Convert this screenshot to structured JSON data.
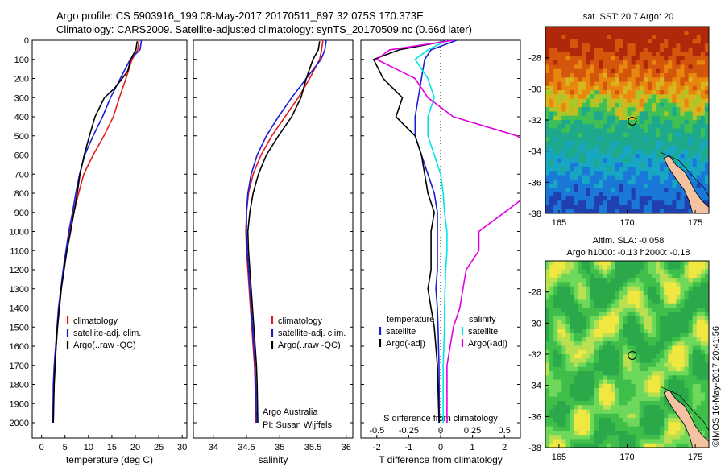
{
  "header": {
    "line1": "Argo profile: CS 5903916_199 08-May-2017 20170511_897 32.075S 170.373E",
    "line2": "Climatology: CARS2009. Satellite-adjusted climatology: synTS_20170509.nc (0.66d later)"
  },
  "side_stamp": "©IMOS 16-May-2017 20:41:56",
  "colors": {
    "climatology": "#e41a1c",
    "satellite": "#1c1cd8",
    "argo": "#000000",
    "sat_sal": "#00e5e5",
    "argo_sal": "#e000e0"
  },
  "chart_data": [
    {
      "type": "line",
      "title": "",
      "xlabel": "temperature (deg C)",
      "ylabel": "",
      "xlim": [
        -2,
        31
      ],
      "ylim": [
        2080,
        0
      ],
      "xticks": [
        "0",
        "5",
        "10",
        "15",
        "20",
        "25",
        "30"
      ],
      "yticks": [
        "0",
        "100",
        "200",
        "300",
        "400",
        "500",
        "600",
        "700",
        "800",
        "900",
        "1000",
        "1100",
        "1200",
        "1300",
        "1400",
        "1500",
        "1600",
        "1700",
        "1800",
        "1900",
        "2000"
      ],
      "legend": {
        "position": "lower-center",
        "entries": [
          "climatology",
          "satellite-adj. clim.",
          "Argo(..raw -QC)"
        ]
      },
      "series": [
        {
          "name": "climatology",
          "x": [
            20.8,
            20.5,
            19.3,
            18.0,
            16.6,
            15.3,
            13.3,
            11.0,
            9.0,
            7.9,
            6.9,
            6.0,
            5.3,
            4.7,
            4.2,
            3.8,
            3.4,
            3.1,
            2.8,
            2.6,
            2.5
          ],
          "y": [
            0,
            50,
            100,
            200,
            300,
            400,
            500,
            600,
            700,
            800,
            900,
            1000,
            1100,
            1200,
            1300,
            1400,
            1500,
            1600,
            1700,
            1800,
            2000
          ]
        },
        {
          "name": "satellite-adj. clim.",
          "x": [
            21.3,
            21.0,
            18.9,
            16.8,
            14.7,
            13.0,
            11.0,
            9.2,
            8.1,
            7.3,
            6.6,
            5.8,
            5.2,
            4.6,
            4.1,
            3.6,
            3.3,
            3.0,
            2.7,
            2.5,
            2.4
          ],
          "y": [
            0,
            50,
            100,
            200,
            300,
            400,
            500,
            600,
            700,
            800,
            900,
            1000,
            1100,
            1200,
            1300,
            1400,
            1500,
            1600,
            1700,
            1800,
            2000
          ]
        },
        {
          "name": "Argo(..raw -QC)",
          "x": [
            20.4,
            20.1,
            19.0,
            18.4,
            17.2,
            15.6,
            13.4,
            11.4,
            10.2,
            9.1,
            8.2,
            7.6,
            6.9,
            6.2,
            5.4,
            4.8,
            4.2,
            3.8,
            3.4,
            3.1,
            2.9,
            2.7,
            2.5
          ],
          "y": [
            5,
            50,
            100,
            160,
            200,
            250,
            300,
            400,
            500,
            600,
            700,
            800,
            900,
            1000,
            1100,
            1200,
            1300,
            1400,
            1500,
            1600,
            1700,
            1800,
            2000
          ]
        }
      ]
    },
    {
      "type": "line",
      "title": "",
      "xlabel": "salinity",
      "ylabel": "",
      "xlim": [
        33.7,
        36.1
      ],
      "ylim": [
        2080,
        0
      ],
      "xticks": [
        "34",
        "34.5",
        "35",
        "35.5",
        "36"
      ],
      "legend": {
        "position": "lower-center",
        "entries": [
          "climatology",
          "satellite-adj. clim.",
          "Argo(..raw -QC)"
        ]
      },
      "annotation": [
        "Argo Australia",
        "PI: Susan Wijffels"
      ],
      "series": [
        {
          "name": "climatology",
          "x": [
            35.65,
            35.63,
            35.6,
            35.45,
            35.28,
            35.08,
            34.88,
            34.72,
            34.6,
            34.53,
            34.5,
            34.49,
            34.5,
            34.52,
            34.54,
            34.56,
            34.58,
            34.6,
            34.62,
            34.63,
            34.64
          ],
          "y": [
            0,
            50,
            100,
            200,
            300,
            400,
            500,
            600,
            700,
            800,
            900,
            1000,
            1100,
            1200,
            1300,
            1400,
            1500,
            1600,
            1700,
            1800,
            2000
          ]
        },
        {
          "name": "satellite-adj. clim.",
          "x": [
            35.7,
            35.68,
            35.62,
            35.4,
            35.18,
            34.98,
            34.8,
            34.66,
            34.57,
            34.52,
            34.5,
            34.5,
            34.51,
            34.53,
            34.55,
            34.57,
            34.59,
            34.61,
            34.63,
            34.64,
            34.65
          ],
          "y": [
            0,
            50,
            100,
            200,
            300,
            400,
            500,
            600,
            700,
            800,
            900,
            1000,
            1100,
            1200,
            1300,
            1400,
            1500,
            1600,
            1700,
            1800,
            2000
          ]
        },
        {
          "name": "Argo(..raw -QC)",
          "x": [
            35.6,
            35.58,
            35.5,
            35.4,
            35.32,
            35.18,
            34.98,
            34.8,
            34.68,
            34.6,
            34.55,
            34.52,
            34.53,
            34.55,
            34.57,
            34.59,
            34.61,
            34.63,
            34.65,
            34.66,
            34.67
          ],
          "y": [
            5,
            50,
            100,
            200,
            300,
            400,
            500,
            600,
            700,
            800,
            900,
            1000,
            1100,
            1200,
            1300,
            1400,
            1500,
            1600,
            1700,
            1800,
            2000
          ]
        }
      ]
    },
    {
      "type": "line",
      "title": "",
      "xlabel": "T difference from climatology",
      "xlabel2": "S difference from climatology",
      "ylabel": "",
      "xlim": [
        -2.5,
        2.5
      ],
      "ylim": [
        2080,
        0
      ],
      "xticks_T": [
        "-2",
        "-1",
        "0",
        "1",
        "2"
      ],
      "xticks_S": [
        "-0.5",
        "-0.25",
        "0",
        "0.25",
        "0.5"
      ],
      "legend": {
        "position": "lower",
        "headers": [
          "temperature",
          "salinity"
        ],
        "entries": [
          "satellite",
          "Argo(-adj)",
          "satellite",
          "Argo(-adj)"
        ]
      },
      "series": [
        {
          "name": "satellite",
          "group": "temperature",
          "x": [
            0.5,
            -0.3,
            -0.5,
            -0.6,
            -0.7,
            -0.8,
            -0.8,
            -0.6,
            -0.4,
            -0.2,
            -0.1,
            -0.1,
            -0.1,
            -0.1,
            -0.15,
            -0.1,
            -0.08,
            -0.05,
            -0.04
          ],
          "y": [
            0,
            50,
            100,
            200,
            300,
            400,
            500,
            600,
            700,
            800,
            900,
            1000,
            1100,
            1200,
            1300,
            1400,
            1500,
            1700,
            2000
          ]
        },
        {
          "name": "Argo(-adj)",
          "group": "temperature",
          "x": [
            0.3,
            -1.3,
            -2.1,
            -1.8,
            -1.2,
            -1.4,
            -0.8,
            -0.6,
            -0.5,
            -0.4,
            -0.2,
            -0.3,
            -0.3,
            -0.3,
            -0.4,
            -0.3,
            -0.2,
            -0.1,
            -0.05
          ],
          "y": [
            0,
            50,
            100,
            200,
            300,
            400,
            500,
            600,
            700,
            800,
            900,
            1000,
            1100,
            1200,
            1300,
            1400,
            1500,
            1700,
            2000
          ]
        },
        {
          "name": "satellite",
          "group": "salinity",
          "x": [
            0.05,
            -0.1,
            -0.2,
            -0.1,
            -0.05,
            -0.1,
            -0.1,
            -0.05,
            0.0,
            0.02,
            0.03,
            0.05,
            0.05,
            0.04,
            0.03,
            0.03,
            0.02,
            0.02
          ],
          "y": [
            0,
            50,
            100,
            200,
            300,
            400,
            500,
            600,
            700,
            800,
            900,
            1000,
            1100,
            1200,
            1400,
            1500,
            1700,
            2000
          ]
        },
        {
          "name": "Argo(-adj)",
          "group": "salinity",
          "x": [
            0.1,
            -0.4,
            -0.5,
            -0.2,
            -0.1,
            0.1,
            0.6,
            0.8,
            0.9,
            0.7,
            0.5,
            0.3,
            0.3,
            0.2,
            0.15,
            0.1,
            0.05,
            0.05
          ],
          "y": [
            0,
            50,
            100,
            200,
            300,
            400,
            500,
            600,
            700,
            800,
            900,
            1000,
            1100,
            1200,
            1400,
            1500,
            1700,
            2000
          ]
        }
      ]
    },
    {
      "type": "heatmap",
      "title": "sat. SST: 20.7 Argo: 20",
      "xticks": [
        "165",
        "170",
        "175"
      ],
      "yticks": [
        "-28",
        "-30",
        "-32",
        "-34",
        "-36",
        "-38"
      ],
      "xlim": [
        164,
        176
      ],
      "ylim": [
        -38,
        -26
      ],
      "argo_position": [
        170.373,
        -32.075
      ]
    },
    {
      "type": "heatmap",
      "title": "Altim. SLA: -0.058",
      "subtitle": "Argo h1000: -0.13 h2000: -0.18",
      "xticks": [
        "165",
        "170",
        "175"
      ],
      "yticks": [
        "-28",
        "-30",
        "-32",
        "-34",
        "-36",
        "-38"
      ],
      "xlim": [
        164,
        176
      ],
      "ylim": [
        -38,
        -26
      ],
      "argo_position": [
        170.373,
        -32.075
      ]
    }
  ]
}
